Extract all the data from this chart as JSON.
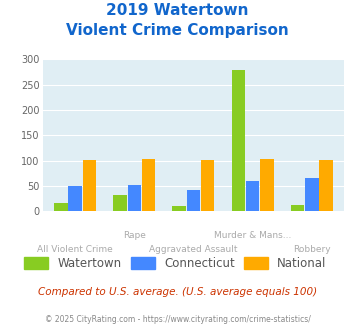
{
  "title_line1": "2019 Watertown",
  "title_line2": "Violent Crime Comparison",
  "top_labels": [
    "",
    "Rape",
    "",
    "Murder & Mans...",
    ""
  ],
  "bottom_labels": [
    "All Violent Crime",
    "",
    "Aggravated Assault",
    "",
    "Robbery"
  ],
  "watertown": [
    17,
    33,
    10,
    279,
    13
  ],
  "connecticut": [
    50,
    52,
    41,
    60,
    66
  ],
  "national": [
    102,
    103,
    102,
    103,
    102
  ],
  "colors": {
    "watertown": "#88cc22",
    "connecticut": "#4488ff",
    "national": "#ffaa00"
  },
  "ylim": [
    0,
    300
  ],
  "yticks": [
    0,
    50,
    100,
    150,
    200,
    250,
    300
  ],
  "background_color": "#ffffff",
  "plot_bg": "#e0eef4",
  "title_color": "#1166cc",
  "label_color": "#aaaaaa",
  "footer_text": "Compared to U.S. average. (U.S. average equals 100)",
  "copyright_text": "© 2025 CityRating.com - https://www.cityrating.com/crime-statistics/",
  "legend_labels": [
    "Watertown",
    "Connecticut",
    "National"
  ]
}
